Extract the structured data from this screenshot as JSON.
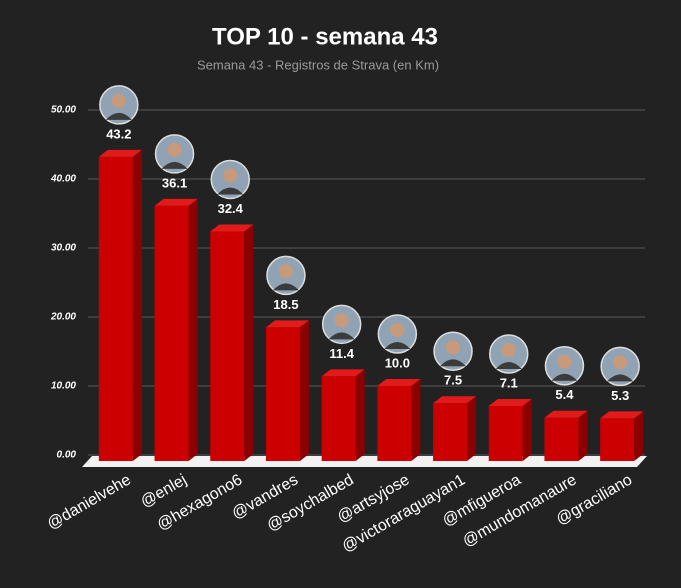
{
  "chart_data": {
    "type": "bar3d",
    "title": "TOP 10 - semana 43",
    "subtitle": "Semana 43 - Registros de Strava (en Km)",
    "categories": [
      "@danielvehe",
      "@enlej",
      "@hexagono6",
      "@vandres",
      "@soychalbed",
      "@artsyjose",
      "@victoraraguayan1",
      "@mfigueroa",
      "@mundomanaure",
      "@graciliano"
    ],
    "values": [
      43.2,
      36.1,
      32.4,
      18.5,
      11.4,
      10.0,
      7.5,
      7.1,
      5.4,
      5.3
    ],
    "value_labels": [
      "43.2",
      "36.1",
      "32.4",
      "18.5",
      "11.4",
      "10.0",
      "7.5",
      "7.1",
      "5.4",
      "5.3"
    ],
    "color": "#cc0000",
    "ylim": [
      0,
      50
    ],
    "yticks": [
      {
        "value": 0,
        "label": "0.00"
      },
      {
        "value": 10,
        "label": "10.00"
      },
      {
        "value": 20,
        "label": "20.00"
      },
      {
        "value": 30,
        "label": "30.00"
      },
      {
        "value": 40,
        "label": "40.00"
      },
      {
        "value": 50,
        "label": "50.00"
      }
    ],
    "grid": true
  }
}
